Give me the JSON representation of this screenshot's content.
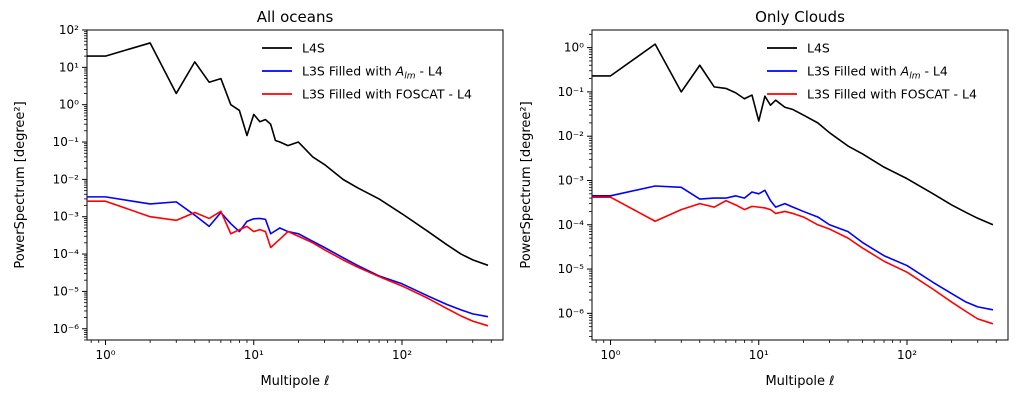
{
  "chart_data": [
    {
      "type": "line",
      "title": "All oceans",
      "xlabel": "Multipole ℓ",
      "ylabel": "PowerSpectrum [degree²]",
      "xscale": "log",
      "yscale": "log",
      "xlim": [
        0.75,
        480
      ],
      "ylim": [
        5e-07,
        100
      ],
      "xtick_labels": [
        "10⁰",
        "10¹",
        "10²"
      ],
      "ytick_labels": [
        "10⁻⁶",
        "10⁻⁵",
        "10⁻⁴",
        "10⁻³",
        "10⁻²",
        "10⁻¹",
        "10⁰",
        "10¹",
        "10²"
      ],
      "legend_position": "upper right",
      "series": [
        {
          "name": "L4S",
          "color": "#000000",
          "x": [
            0.75,
            1,
            2,
            3,
            4,
            5,
            6,
            7,
            8,
            9,
            10,
            11,
            12,
            13,
            14,
            15,
            17,
            20,
            25,
            30,
            40,
            50,
            70,
            100,
            150,
            200,
            250,
            300,
            380
          ],
          "y": [
            20,
            20,
            45,
            2,
            14,
            4,
            5,
            1,
            0.7,
            0.15,
            0.55,
            0.35,
            0.4,
            0.3,
            0.11,
            0.1,
            0.08,
            0.1,
            0.04,
            0.025,
            0.01,
            0.006,
            0.003,
            0.0012,
            0.0004,
            0.00018,
            0.0001,
            7e-05,
            5e-05
          ]
        },
        {
          "name": "L3S Filled with A_lm - L4",
          "color": "#0000ff",
          "x": [
            0.75,
            1,
            2,
            3,
            4,
            5,
            6,
            7,
            8,
            9,
            10,
            11,
            12,
            13,
            15,
            17,
            20,
            25,
            30,
            40,
            50,
            70,
            100,
            150,
            200,
            250,
            300,
            380
          ],
          "y": [
            0.0034,
            0.0034,
            0.0022,
            0.0025,
            0.0011,
            0.00055,
            0.0013,
            0.00065,
            0.0004,
            0.00075,
            0.00088,
            0.0009,
            0.00085,
            0.00035,
            0.0005,
            0.0004,
            0.00035,
            0.00022,
            0.00015,
            8e-05,
            5e-05,
            2.6e-05,
            1.6e-05,
            7.5e-06,
            4.5e-06,
            3.2e-06,
            2.5e-06,
            2.1e-06
          ]
        },
        {
          "name": "L3S Filled with FOSCAT - L4",
          "color": "#ff0000",
          "x": [
            0.75,
            1,
            2,
            3,
            4,
            5,
            6,
            7,
            8,
            9,
            10,
            11,
            12,
            13,
            15,
            17,
            20,
            25,
            30,
            40,
            50,
            70,
            100,
            150,
            200,
            250,
            300,
            380
          ],
          "y": [
            0.0026,
            0.0026,
            0.001,
            0.0008,
            0.0013,
            0.0009,
            0.0014,
            0.00035,
            0.00045,
            0.00055,
            0.0004,
            0.00045,
            0.0004,
            0.00015,
            0.00025,
            0.0004,
            0.0003,
            0.0002,
            0.00013,
            7e-05,
            4.5e-05,
            2.5e-05,
            1.4e-05,
            6.5e-06,
            3.5e-06,
            2.2e-06,
            1.6e-06,
            1.2e-06
          ]
        }
      ]
    },
    {
      "type": "line",
      "title": "Only Clouds",
      "xlabel": "Multipole ℓ",
      "ylabel": "PowerSpectrum [degree²]",
      "xscale": "log",
      "yscale": "log",
      "xlim": [
        0.75,
        480
      ],
      "ylim": [
        2.5e-07,
        2.5
      ],
      "xtick_labels": [
        "10⁰",
        "10¹",
        "10²"
      ],
      "ytick_labels": [
        "10⁻⁶",
        "10⁻⁵",
        "10⁻⁴",
        "10⁻³",
        "10⁻²",
        "10⁻¹",
        "10⁰"
      ],
      "legend_position": "upper right",
      "series": [
        {
          "name": "L4S",
          "color": "#000000",
          "x": [
            0.75,
            1,
            2,
            3,
            4,
            5,
            6,
            7,
            8,
            9,
            10,
            11,
            12,
            13,
            15,
            17,
            20,
            25,
            30,
            40,
            50,
            70,
            100,
            150,
            200,
            250,
            300,
            380
          ],
          "y": [
            0.23,
            0.23,
            1.2,
            0.1,
            0.4,
            0.13,
            0.12,
            0.095,
            0.07,
            0.085,
            0.022,
            0.08,
            0.05,
            0.065,
            0.045,
            0.04,
            0.03,
            0.02,
            0.012,
            0.006,
            0.004,
            0.002,
            0.0011,
            0.0005,
            0.00028,
            0.00019,
            0.00014,
            0.0001
          ]
        },
        {
          "name": "L3S Filled with A_lm - L4",
          "color": "#0000ff",
          "x": [
            0.75,
            1,
            2,
            3,
            4,
            5,
            6,
            7,
            8,
            9,
            10,
            11,
            12,
            13,
            15,
            17,
            20,
            25,
            30,
            40,
            50,
            70,
            100,
            150,
            200,
            250,
            300,
            380
          ],
          "y": [
            0.00045,
            0.00045,
            0.00075,
            0.0007,
            0.00038,
            0.0004,
            0.0004,
            0.00045,
            0.0004,
            0.00055,
            0.0005,
            0.0006,
            0.00035,
            0.00025,
            0.0003,
            0.00025,
            0.0002,
            0.00015,
            0.0001,
            7e-05,
            4e-05,
            2e-05,
            1.2e-05,
            5e-06,
            2.8e-06,
            1.8e-06,
            1.4e-06,
            1.2e-06
          ]
        },
        {
          "name": "L3S Filled with FOSCAT - L4",
          "color": "#ff0000",
          "x": [
            0.75,
            1,
            2,
            3,
            4,
            5,
            6,
            7,
            8,
            9,
            10,
            11,
            12,
            13,
            15,
            17,
            20,
            25,
            30,
            40,
            50,
            70,
            100,
            150,
            200,
            250,
            300,
            380
          ],
          "y": [
            0.00042,
            0.00042,
            0.00012,
            0.00022,
            0.0003,
            0.00025,
            0.00035,
            0.00028,
            0.00022,
            0.00026,
            0.00025,
            0.00024,
            0.00022,
            0.00018,
            0.0002,
            0.00018,
            0.00015,
            0.0001,
            8e-05,
            5e-05,
            3e-05,
            1.5e-05,
            8.5e-06,
            3.5e-06,
            1.8e-06,
            1.1e-06,
            7.5e-07,
            5.8e-07
          ]
        }
      ]
    }
  ]
}
